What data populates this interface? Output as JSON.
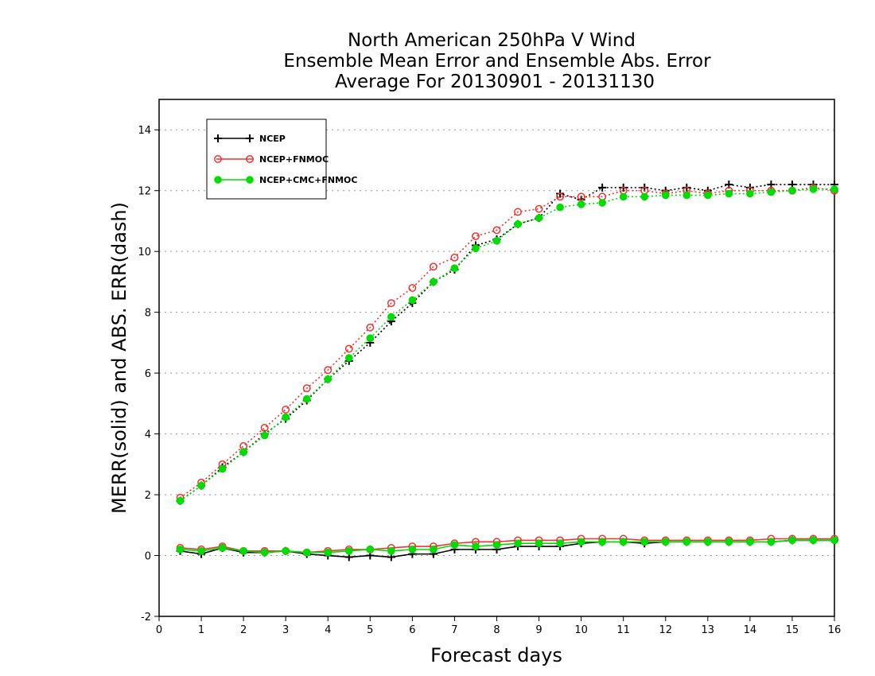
{
  "chart_data": {
    "type": "line",
    "title": [
      "North American 250hPa V Wind",
      "Ensemble Mean Error and Ensemble Abs. Error",
      "Average For 20130901 - 20131130"
    ],
    "xlabel": "Forecast days",
    "ylabel": "MERR(solid) and ABS. ERR(dash)",
    "xlim": [
      0,
      16
    ],
    "ylim": [
      -2,
      15
    ],
    "xticks": [
      0,
      1,
      2,
      3,
      4,
      5,
      6,
      7,
      8,
      9,
      10,
      11,
      12,
      13,
      14,
      15,
      16
    ],
    "yticks": [
      -2,
      0,
      2,
      4,
      6,
      8,
      10,
      12,
      14
    ],
    "grid": "horizontal dotted",
    "legend_position": "top-left",
    "x": [
      0.5,
      1,
      1.5,
      2,
      2.5,
      3,
      3.5,
      4,
      4.5,
      5,
      5.5,
      6,
      6.5,
      7,
      7.5,
      8,
      8.5,
      9,
      9.5,
      10,
      10.5,
      11,
      11.5,
      12,
      12.5,
      13,
      13.5,
      14,
      14.5,
      15,
      15.5,
      16
    ],
    "series": [
      {
        "name": "NCEP",
        "color": "#000000",
        "marker": "plus",
        "abs_err": [
          1.8,
          2.3,
          2.9,
          3.4,
          4.0,
          4.5,
          5.1,
          5.8,
          6.4,
          7.0,
          7.7,
          8.3,
          9.0,
          9.4,
          10.2,
          10.4,
          10.9,
          11.1,
          11.9,
          11.7,
          12.1,
          12.1,
          12.1,
          12.0,
          12.1,
          12.0,
          12.2,
          12.1,
          12.2,
          12.2,
          12.2,
          12.2
        ],
        "mean_err": [
          0.15,
          0.05,
          0.25,
          0.1,
          0.1,
          0.15,
          0.05,
          0.0,
          -0.05,
          0.0,
          -0.05,
          0.05,
          0.05,
          0.2,
          0.2,
          0.2,
          0.3,
          0.3,
          0.3,
          0.4,
          0.45,
          0.45,
          0.4,
          0.45,
          0.45,
          0.45,
          0.45,
          0.45,
          0.45,
          0.5,
          0.5,
          0.5
        ]
      },
      {
        "name": "NCEP+FNMOC",
        "color": "#ee3333",
        "marker": "open-circle",
        "abs_err": [
          1.9,
          2.4,
          3.0,
          3.6,
          4.2,
          4.8,
          5.5,
          6.1,
          6.8,
          7.5,
          8.3,
          8.8,
          9.5,
          9.8,
          10.5,
          10.7,
          11.3,
          11.4,
          11.8,
          11.8,
          11.8,
          12.0,
          12.0,
          11.9,
          12.0,
          11.9,
          12.0,
          12.0,
          12.0,
          12.0,
          12.1,
          12.0
        ],
        "mean_err": [
          0.25,
          0.2,
          0.3,
          0.15,
          0.15,
          0.15,
          0.1,
          0.15,
          0.2,
          0.2,
          0.25,
          0.3,
          0.3,
          0.4,
          0.45,
          0.45,
          0.5,
          0.5,
          0.5,
          0.55,
          0.55,
          0.55,
          0.5,
          0.5,
          0.5,
          0.5,
          0.5,
          0.5,
          0.55,
          0.55,
          0.55,
          0.55
        ]
      },
      {
        "name": "NCEP+CMC+FNMOC",
        "color": "#00dd00",
        "marker": "filled-circle",
        "abs_err": [
          1.8,
          2.3,
          2.85,
          3.4,
          3.95,
          4.55,
          5.15,
          5.8,
          6.5,
          7.15,
          7.85,
          8.4,
          9.0,
          9.45,
          10.1,
          10.35,
          10.9,
          11.1,
          11.45,
          11.55,
          11.6,
          11.8,
          11.8,
          11.85,
          11.85,
          11.85,
          11.9,
          11.9,
          11.95,
          12.0,
          12.05,
          12.05
        ],
        "mean_err": [
          0.2,
          0.15,
          0.25,
          0.15,
          0.1,
          0.15,
          0.1,
          0.1,
          0.15,
          0.2,
          0.15,
          0.2,
          0.2,
          0.35,
          0.3,
          0.35,
          0.4,
          0.4,
          0.4,
          0.45,
          0.45,
          0.45,
          0.45,
          0.45,
          0.45,
          0.45,
          0.45,
          0.45,
          0.45,
          0.5,
          0.5,
          0.5
        ]
      }
    ]
  }
}
